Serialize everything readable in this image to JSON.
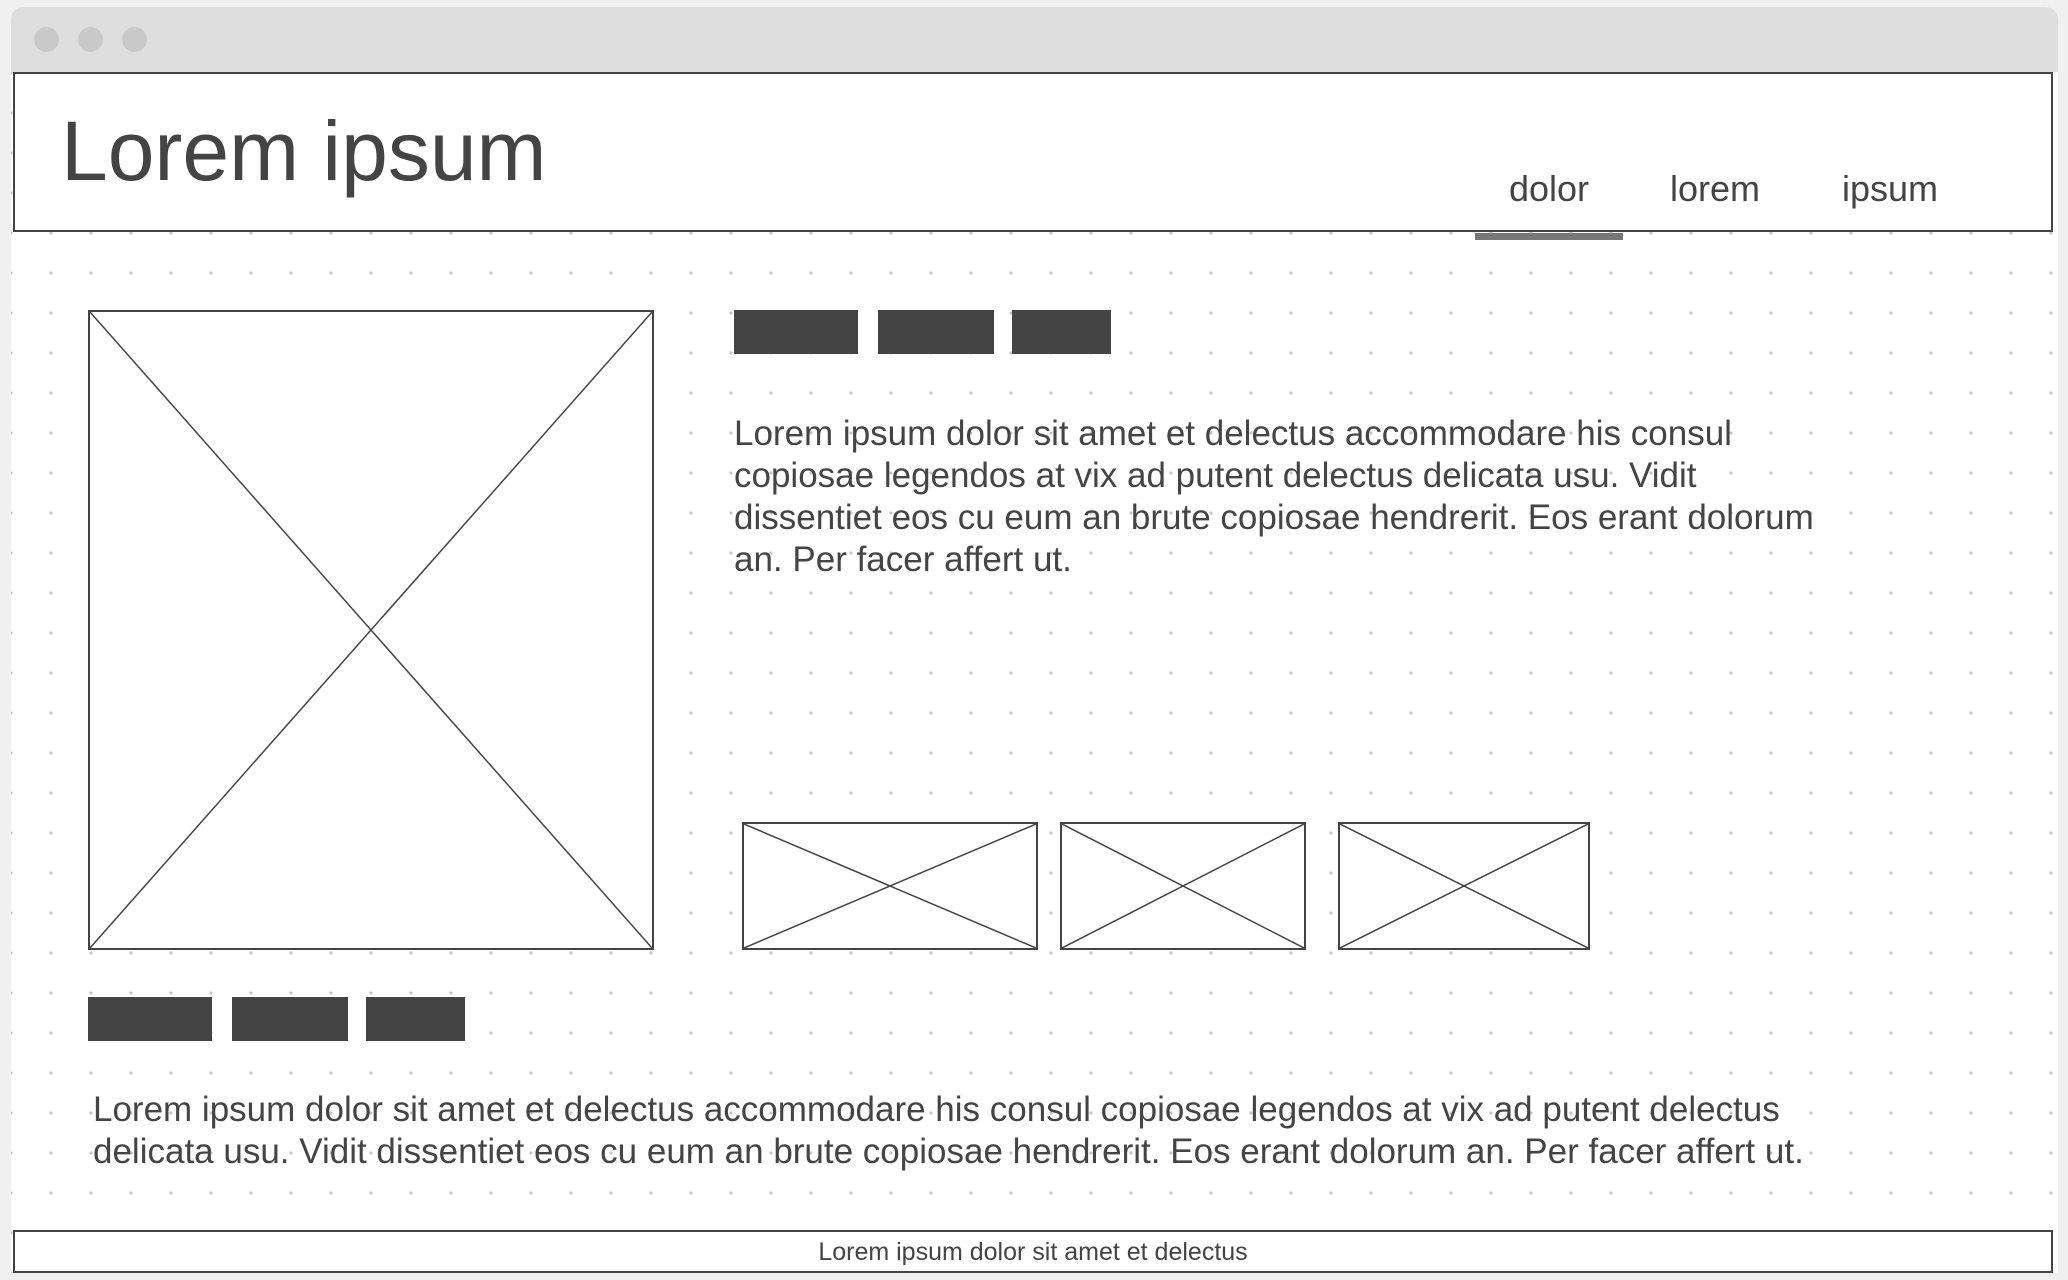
{
  "header": {
    "title": "Lorem ipsum",
    "nav": [
      {
        "label": "dolor",
        "active": true
      },
      {
        "label": "lorem",
        "active": false
      },
      {
        "label": "ipsum",
        "active": false
      }
    ]
  },
  "main": {
    "description": "Lorem ipsum dolor sit amet et delectus accommodare his consul copiosae legendos at vix ad putent delectus delicata usu. Vidit dissentiet eos cu eum an brute copiosae hendrerit. Eos erant dolorum an. Per facer affert ut.",
    "body_text": "Lorem ipsum dolor sit amet et delectus accommodare his consul copiosae legendos at vix ad putent delectus delicata usu. Vidit dissentiet eos cu eum an brute copiosae hendrerit. Eos erant dolorum an. Per facer affert ut."
  },
  "footer": {
    "text": "Lorem ipsum dolor sit amet et delectus"
  },
  "colors": {
    "ink": "#444444",
    "titlebar": "#dedede",
    "dot_grid": "#c4c4c4",
    "active_tab_underline": "#777777"
  }
}
